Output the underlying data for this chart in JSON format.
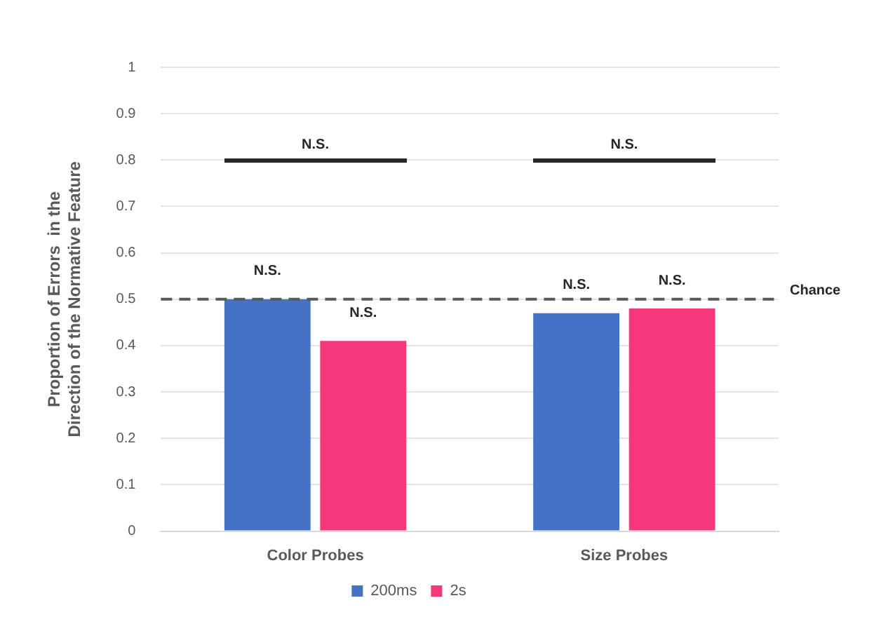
{
  "chart_data": {
    "type": "bar",
    "ylabel": "Proportion of Errors  in the Direction of the Normative Feature",
    "categories": [
      "Color Probes",
      "Size Probes"
    ],
    "series": [
      {
        "name": "200ms",
        "color": "#4472c4",
        "values": [
          0.5,
          0.47
        ],
        "value_labels": [
          "N.S.",
          "N.S."
        ]
      },
      {
        "name": "2s",
        "color": "#f5387c",
        "values": [
          0.41,
          0.48
        ],
        "value_labels": [
          "N.S.",
          "N.S."
        ]
      }
    ],
    "ylim": [
      0,
      1
    ],
    "yticks": [
      0,
      0.1,
      0.2,
      0.3,
      0.4,
      0.5,
      0.6,
      0.7,
      0.8,
      0.9,
      1
    ],
    "grid": "y",
    "legend": "bottom",
    "ref_lines": [
      {
        "axis": "y",
        "value": 0.5,
        "label": "Chance",
        "color": "#595959",
        "line_style": "dashed"
      }
    ],
    "annotations": [
      "N.S.",
      "N.S."
    ]
  }
}
